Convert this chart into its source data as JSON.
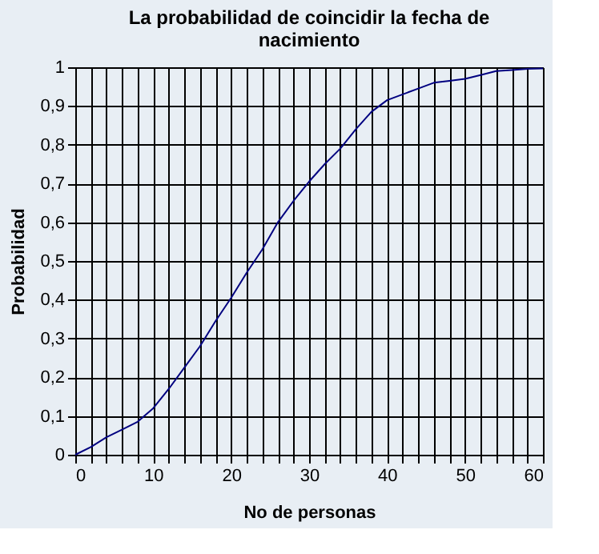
{
  "chart_data": {
    "type": "line",
    "title": "La probabilidad de coincidir la fecha de nacimiento",
    "xlabel": "No de personas",
    "ylabel": "Probabilidad",
    "x": [
      0,
      2,
      4,
      6,
      8,
      10,
      12,
      14,
      16,
      18,
      20,
      22,
      24,
      26,
      28,
      30,
      32,
      34,
      36,
      38,
      40,
      42,
      44,
      46,
      48,
      50,
      52,
      54,
      56,
      58,
      60
    ],
    "series": [
      {
        "color": "#000080",
        "values": [
          0,
          0.02,
          0.045,
          0.065,
          0.085,
          0.12,
          0.17,
          0.225,
          0.28,
          0.345,
          0.405,
          0.47,
          0.53,
          0.6,
          0.655,
          0.705,
          0.75,
          0.79,
          0.84,
          0.885,
          0.915,
          0.93,
          0.945,
          0.96,
          0.965,
          0.97,
          0.98,
          0.99,
          0.993,
          0.996,
          0.997
        ]
      }
    ],
    "xlim": [
      0,
      60
    ],
    "ylim": [
      0,
      1
    ],
    "xticks": [
      0,
      {
        "value": 2,
        "label": null
      },
      {
        "value": 4,
        "label": null
      },
      {
        "value": 6,
        "label": null
      },
      {
        "value": 8,
        "label": null
      },
      10,
      {
        "value": 12,
        "label": null
      },
      {
        "value": 14,
        "label": null
      },
      {
        "value": 16,
        "label": null
      },
      {
        "value": 18,
        "label": null
      },
      20,
      {
        "value": 22,
        "label": null
      },
      {
        "value": 24,
        "label": null
      },
      {
        "value": 26,
        "label": null
      },
      {
        "value": 28,
        "label": null
      },
      30,
      {
        "value": 32,
        "label": null
      },
      {
        "value": 34,
        "label": null
      },
      {
        "value": 36,
        "label": null
      },
      {
        "value": 38,
        "label": null
      },
      40,
      {
        "value": 42,
        "label": null
      },
      {
        "value": 44,
        "label": null
      },
      {
        "value": 46,
        "label": null
      },
      {
        "value": 48,
        "label": null
      },
      50,
      {
        "value": 52,
        "label": null
      },
      {
        "value": 54,
        "label": null
      },
      {
        "value": 56,
        "label": null
      },
      {
        "value": 58,
        "label": null
      },
      60
    ],
    "yticks": [
      0,
      {
        "value": 0.1,
        "label": "0,1"
      },
      {
        "value": 0.2,
        "label": "0,2"
      },
      {
        "value": 0.3,
        "label": "0,3"
      },
      {
        "value": 0.4,
        "label": "0,4"
      },
      {
        "value": 0.5,
        "label": "0,5"
      },
      {
        "value": 0.6,
        "label": "0,6"
      },
      {
        "value": 0.7,
        "label": "0,7"
      },
      {
        "value": 0.8,
        "label": "0,8"
      },
      {
        "value": 0.9,
        "label": "0,9"
      },
      1
    ],
    "grid": true,
    "legend": false,
    "marker": "none",
    "line_style": "solid"
  }
}
